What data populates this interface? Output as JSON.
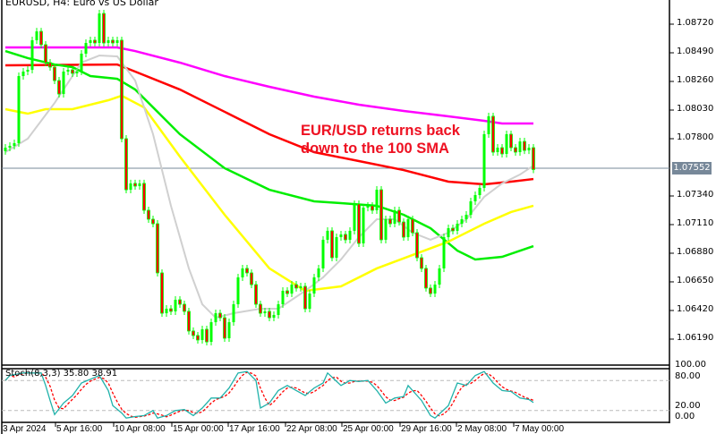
{
  "header": {
    "title": "EURUSD, H4:  Euro vs US Dollar"
  },
  "annotation": {
    "line1": "EUR/USD returns back",
    "line2": "down to the 100 SMA"
  },
  "current_price": "1.07552",
  "colors": {
    "bull": "#00ff00",
    "bear": "#ff0000",
    "ma_magenta": "#ff00ff",
    "ma_red": "#ff0000",
    "ma_green": "#00ee00",
    "ma_yellow": "#ffff00",
    "ma_gray": "#d0d0d0",
    "stoch_k": "#20b2aa",
    "stoch_d": "#ff0000",
    "price_line": "#778899",
    "annotation": "#ee1122"
  },
  "chart_data": [
    {
      "type": "candlestick",
      "symbol": "EURUSD",
      "timeframe": "H4",
      "ylim": [
        1.06,
        1.089
      ],
      "y_ticks": [
        "1.08720",
        "1.08490",
        "1.08260",
        "1.08030",
        "1.07800",
        "1.07340",
        "1.07110",
        "1.06880",
        "1.06650",
        "1.06420",
        "1.06190"
      ],
      "x_ticks": [
        "3 Apr 2024",
        "5 Apr 16:00",
        "10 Apr 08:00",
        "15 Apr 00:00",
        "17 Apr 16:00",
        "22 Apr 08:00",
        "25 Apr 00:00",
        "29 Apr 16:00",
        "2 May 08:00",
        "7 May 00:00"
      ],
      "first_open": 1.077,
      "closes": [
        1.07728,
        1.07742,
        1.07764,
        1.08303,
        1.08339,
        1.08353,
        1.08591,
        1.08662,
        1.08555,
        1.08411,
        1.08375,
        1.08267,
        1.08159,
        1.08339,
        1.08353,
        1.08325,
        1.08339,
        1.08483,
        1.08569,
        1.08591,
        1.08569,
        1.08806,
        1.08569,
        1.08591,
        1.08569,
        1.08591,
        1.078,
        1.0739,
        1.07441,
        1.07419,
        1.07441,
        1.07225,
        1.07153,
        1.07117,
        1.06722,
        1.06398,
        1.06434,
        1.06413,
        1.06506,
        1.0647,
        1.06413,
        1.06255,
        1.06219,
        1.06183,
        1.06269,
        1.06168,
        1.06326,
        1.06398,
        1.06362,
        1.06197,
        1.06326,
        1.0647,
        1.06686,
        1.06758,
        1.06722,
        1.06628,
        1.0647,
        1.06398,
        1.06413,
        1.06362,
        1.06384,
        1.0647,
        1.06578,
        1.06556,
        1.06628,
        1.066,
        1.06614,
        1.06434,
        1.06556,
        1.06686,
        1.06758,
        1.06988,
        1.0706,
        1.06844,
        1.07009,
        1.07031,
        1.06988,
        1.0706,
        1.07275,
        1.06959,
        1.07246,
        1.07261,
        1.07225,
        1.0739,
        1.06988,
        1.07153,
        1.07117,
        1.07225,
        1.07131,
        1.07009,
        1.07153,
        1.07045,
        1.06844,
        1.06758,
        1.066,
        1.06556,
        1.06628,
        1.06758,
        1.07009,
        1.07081,
        1.0706,
        1.07117,
        1.07153,
        1.07189,
        1.07297,
        1.07347,
        1.07405,
        1.07836,
        1.0798,
        1.07692,
        1.07728,
        1.07678,
        1.07836,
        1.07728,
        1.07692,
        1.07778,
        1.07706,
        1.07728,
        1.07552
      ],
      "moving_averages": [
        {
          "color": "#ff00ff",
          "points": [
            [
              0,
              1.08533
            ],
            [
              25,
              1.08533
            ],
            [
              29,
              1.08504
            ],
            [
              39,
              1.08411
            ],
            [
              49,
              1.08303
            ],
            [
              59,
              1.08217
            ],
            [
              69,
              1.08138
            ],
            [
              79,
              1.08073
            ],
            [
              89,
              1.08023
            ],
            [
              99,
              1.0798
            ],
            [
              107,
              1.07944
            ],
            [
              111,
              1.07922
            ],
            [
              118,
              1.07922
            ]
          ]
        },
        {
          "color": "#ff0000",
          "points": [
            [
              0,
              1.08389
            ],
            [
              25,
              1.08396
            ],
            [
              29,
              1.08339
            ],
            [
              39,
              1.08195
            ],
            [
              49,
              1.08016
            ],
            [
              59,
              1.07836
            ],
            [
              69,
              1.07692
            ],
            [
              79,
              1.0762
            ],
            [
              89,
              1.07548
            ],
            [
              99,
              1.07455
            ],
            [
              107,
              1.07433
            ],
            [
              113,
              1.07455
            ],
            [
              118,
              1.07476
            ]
          ]
        },
        {
          "color": "#00ee00",
          "points": [
            [
              0,
              1.08504
            ],
            [
              5,
              1.08447
            ],
            [
              11,
              1.08396
            ],
            [
              15,
              1.08375
            ],
            [
              19,
              1.08303
            ],
            [
              25,
              1.08281
            ],
            [
              29,
              1.08195
            ],
            [
              34,
              1.08016
            ],
            [
              39,
              1.07836
            ],
            [
              49,
              1.07563
            ],
            [
              59,
              1.0739
            ],
            [
              69,
              1.07297
            ],
            [
              75,
              1.07282
            ],
            [
              83,
              1.07261
            ],
            [
              89,
              1.07189
            ],
            [
              95,
              1.07081
            ],
            [
              101,
              1.06901
            ],
            [
              105,
              1.0683
            ],
            [
              111,
              1.06851
            ],
            [
              118,
              1.06937
            ]
          ]
        },
        {
          "color": "#ffff00",
          "points": [
            [
              0,
              1.08037
            ],
            [
              5,
              1.08001
            ],
            [
              9,
              1.08037
            ],
            [
              15,
              1.08037
            ],
            [
              23,
              1.08109
            ],
            [
              26,
              1.08145
            ],
            [
              31,
              1.08051
            ],
            [
              39,
              1.07656
            ],
            [
              49,
              1.07189
            ],
            [
              59,
              1.06758
            ],
            [
              67,
              1.06578
            ],
            [
              75,
              1.06614
            ],
            [
              83,
              1.06758
            ],
            [
              91,
              1.06866
            ],
            [
              99,
              1.06973
            ],
            [
              107,
              1.07117
            ],
            [
              113,
              1.07211
            ],
            [
              118,
              1.07261
            ]
          ]
        },
        {
          "color": "#d0d0d0",
          "points": [
            [
              0,
              1.07692
            ],
            [
              5,
              1.078
            ],
            [
              11,
              1.08087
            ],
            [
              17,
              1.08411
            ],
            [
              21,
              1.08468
            ],
            [
              25,
              1.08461
            ],
            [
              29,
              1.08267
            ],
            [
              33,
              1.07836
            ],
            [
              37,
              1.07261
            ],
            [
              41,
              1.06758
            ],
            [
              44,
              1.0647
            ],
            [
              47,
              1.06362
            ],
            [
              51,
              1.06398
            ],
            [
              57,
              1.06434
            ],
            [
              61,
              1.06434
            ],
            [
              67,
              1.06578
            ],
            [
              71,
              1.06686
            ],
            [
              75,
              1.0683
            ],
            [
              79,
              1.07009
            ],
            [
              83,
              1.07153
            ],
            [
              87,
              1.07153
            ],
            [
              91,
              1.07045
            ],
            [
              95,
              1.06988
            ],
            [
              99,
              1.07045
            ],
            [
              103,
              1.07153
            ],
            [
              107,
              1.07333
            ],
            [
              111,
              1.07441
            ],
            [
              115,
              1.07512
            ],
            [
              118,
              1.07584
            ]
          ]
        }
      ]
    },
    {
      "type": "line",
      "indicator": "Stochastic",
      "label": "Stoch(8,3,3) 35.80 38.91",
      "ylim": [
        0,
        100
      ],
      "y_ticks": [
        "100.00",
        "80.00",
        "20.00",
        "0.00"
      ],
      "levels": [
        80,
        20
      ],
      "k": [
        [
          0,
          80
        ],
        [
          1,
          90
        ],
        [
          4,
          95
        ],
        [
          8,
          95
        ],
        [
          9,
          70
        ],
        [
          10,
          40
        ],
        [
          11,
          12
        ],
        [
          13,
          35
        ],
        [
          15,
          50
        ],
        [
          17,
          75
        ],
        [
          21,
          90
        ],
        [
          23,
          60
        ],
        [
          24,
          30
        ],
        [
          26,
          15
        ],
        [
          27,
          5
        ],
        [
          29,
          8
        ],
        [
          31,
          10
        ],
        [
          33,
          20
        ],
        [
          34,
          5
        ],
        [
          36,
          10
        ],
        [
          38,
          20
        ],
        [
          40,
          22
        ],
        [
          42,
          10
        ],
        [
          44,
          25
        ],
        [
          46,
          45
        ],
        [
          48,
          45
        ],
        [
          50,
          65
        ],
        [
          52,
          95
        ],
        [
          54,
          98
        ],
        [
          56,
          80
        ],
        [
          57,
          25
        ],
        [
          59,
          35
        ],
        [
          61,
          60
        ],
        [
          63,
          70
        ],
        [
          65,
          60
        ],
        [
          67,
          50
        ],
        [
          69,
          65
        ],
        [
          71,
          75
        ],
        [
          72,
          95
        ],
        [
          75,
          70
        ],
        [
          77,
          80
        ],
        [
          79,
          78
        ],
        [
          81,
          80
        ],
        [
          83,
          60
        ],
        [
          85,
          35
        ],
        [
          87,
          45
        ],
        [
          89,
          48
        ],
        [
          90,
          70
        ],
        [
          93,
          40
        ],
        [
          95,
          10
        ],
        [
          96,
          5
        ],
        [
          99,
          30
        ],
        [
          101,
          75
        ],
        [
          103,
          70
        ],
        [
          105,
          90
        ],
        [
          107,
          98
        ],
        [
          109,
          75
        ],
        [
          111,
          60
        ],
        [
          113,
          58
        ],
        [
          115,
          45
        ],
        [
          117,
          42
        ],
        [
          118,
          36
        ]
      ]
    }
  ]
}
